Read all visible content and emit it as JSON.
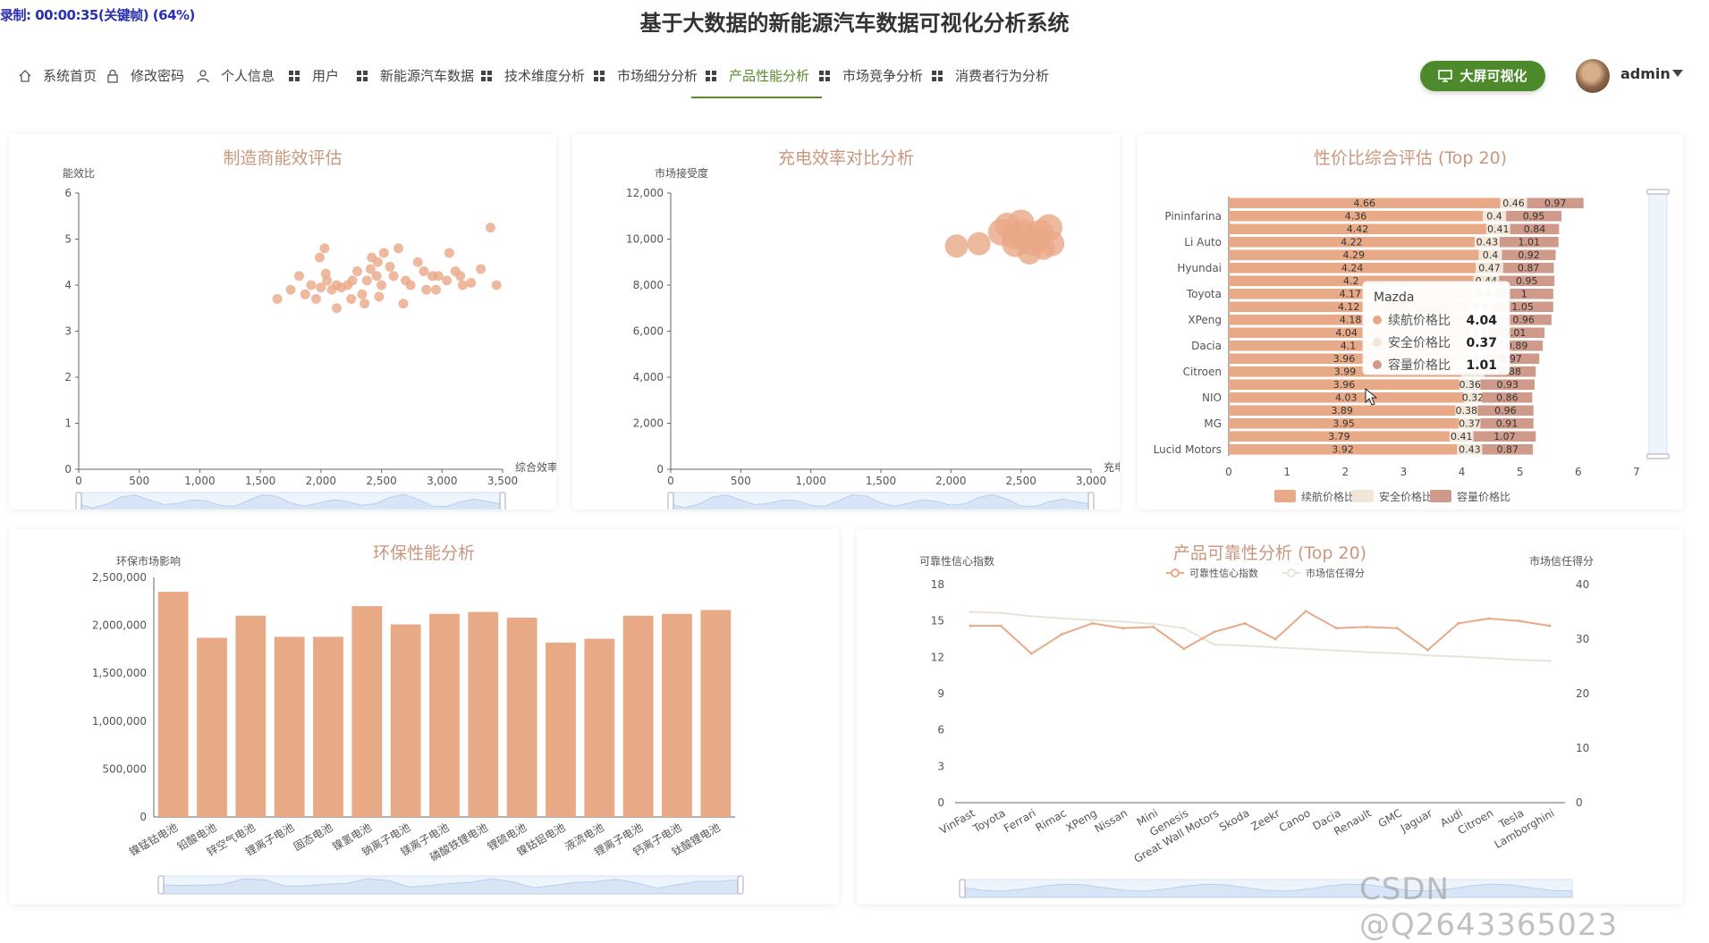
{
  "recording": "录制: 00:00:35(关键帧) (64%)",
  "title": "基于大数据的新能源汽车数据可视化分析系统",
  "nav": [
    {
      "label": "系统首页",
      "icon": "home-icon"
    },
    {
      "label": "修改密码",
      "icon": "lock-icon"
    },
    {
      "label": "个人信息",
      "icon": "user-icon"
    },
    {
      "label": "用户",
      "icon": "grid-icon"
    },
    {
      "label": "新能源汽车数据",
      "icon": "grid-icon"
    },
    {
      "label": "技术维度分析",
      "icon": "grid-icon"
    },
    {
      "label": "市场细分分析",
      "icon": "grid-icon"
    },
    {
      "label": "产品性能分析",
      "icon": "grid-icon",
      "active": true
    },
    {
      "label": "市场竞争分析",
      "icon": "grid-icon"
    },
    {
      "label": "消费者行为分析",
      "icon": "grid-icon"
    }
  ],
  "bigscreen_label": "大屏可视化",
  "user": "admin",
  "watermark": "CSDN @Q2643365023",
  "colors": {
    "accent": "#4c8a2c",
    "bar": "#e8a987",
    "bar2": "#f2e6d8",
    "bar3": "#cf9a8a",
    "line2": "#e9e4d7"
  },
  "charts": {
    "c1": {
      "title": "制造商能效评估",
      "type": "scatter",
      "ylabel": "能效比",
      "xlabel": "综合效率%",
      "xlim": [
        0,
        3500
      ],
      "ylim": [
        0,
        6
      ],
      "xticks": [
        "0",
        "500",
        "1,000",
        "1,500",
        "2,000",
        "2,500",
        "3,000",
        "3,500"
      ],
      "yticks": [
        "0",
        "1",
        "2",
        "3",
        "4",
        "5",
        "6"
      ],
      "points": [
        [
          1640,
          3.7
        ],
        [
          1750,
          3.9
        ],
        [
          1820,
          4.2
        ],
        [
          1870,
          3.8
        ],
        [
          1920,
          4.0
        ],
        [
          1960,
          3.7
        ],
        [
          2000,
          3.95
        ],
        [
          1990,
          4.6
        ],
        [
          2030,
          4.8
        ],
        [
          2050,
          4.1
        ],
        [
          2090,
          3.9
        ],
        [
          2130,
          4.0
        ],
        [
          2170,
          3.95
        ],
        [
          2220,
          4.0
        ],
        [
          2250,
          3.7
        ],
        [
          2260,
          4.1
        ],
        [
          2300,
          4.3
        ],
        [
          2340,
          3.8
        ],
        [
          2380,
          4.1
        ],
        [
          2410,
          4.35
        ],
        [
          2420,
          4.6
        ],
        [
          2460,
          4.2
        ],
        [
          2470,
          4.5
        ],
        [
          2480,
          3.75
        ],
        [
          2500,
          4.0
        ],
        [
          2520,
          4.7
        ],
        [
          2570,
          4.4
        ],
        [
          2600,
          4.2
        ],
        [
          2640,
          4.8
        ],
        [
          2680,
          3.6
        ],
        [
          2700,
          4.1
        ],
        [
          2740,
          4.0
        ],
        [
          2800,
          4.5
        ],
        [
          2850,
          4.3
        ],
        [
          2870,
          3.9
        ],
        [
          2920,
          4.2
        ],
        [
          2950,
          3.9
        ],
        [
          2970,
          4.2
        ],
        [
          3040,
          4.1
        ],
        [
          3060,
          4.7
        ],
        [
          3110,
          4.3
        ],
        [
          3150,
          4.2
        ],
        [
          3170,
          4.0
        ],
        [
          3240,
          4.05
        ],
        [
          3320,
          4.35
        ],
        [
          3400,
          5.25
        ],
        [
          3450,
          4.0
        ],
        [
          2130,
          3.5
        ],
        [
          2360,
          3.6
        ],
        [
          2040,
          4.25
        ]
      ]
    },
    "c2": {
      "title": "充电效率对比分析",
      "type": "scatter",
      "ylabel": "市场接受度",
      "xlabel": "充电效率",
      "xlim": [
        0,
        3000
      ],
      "ylim": [
        0,
        12000
      ],
      "xticks": [
        "0",
        "500",
        "1,000",
        "1,500",
        "2,000",
        "2,500",
        "3,000"
      ],
      "yticks": [
        "0",
        "2,000",
        "4,000",
        "6,000",
        "8,000",
        "10,000",
        "12,000"
      ],
      "points": [
        [
          2040,
          9700
        ],
        [
          2200,
          9800
        ],
        [
          2360,
          10300
        ],
        [
          2400,
          10600
        ],
        [
          2500,
          10700
        ],
        [
          2520,
          10200
        ],
        [
          2580,
          9900
        ],
        [
          2620,
          10000
        ],
        [
          2660,
          9600
        ],
        [
          2700,
          10500
        ],
        [
          2720,
          9800
        ],
        [
          2560,
          9400
        ],
        [
          2460,
          9800
        ],
        [
          2640,
          10300
        ],
        [
          2450,
          10100
        ]
      ]
    },
    "c3": {
      "title": "性价比综合评估 (Top 20)",
      "type": "bar",
      "legend": [
        "续航价格比",
        "安全价格比",
        "容量价格比"
      ],
      "xticks": [
        "0",
        "1",
        "2",
        "3",
        "4",
        "5",
        "6",
        "7"
      ],
      "ylabels": [
        "Pininfarina",
        "Li Auto",
        "Hyundai",
        "Toyota",
        "XPeng",
        "Dacia",
        "Citroen",
        "NIO",
        "MG",
        "Lucid Motors"
      ],
      "rows": [
        [
          4.66,
          0.46,
          0.97
        ],
        [
          4.36,
          0.4,
          0.95
        ],
        [
          4.42,
          0.41,
          0.84
        ],
        [
          4.22,
          0.43,
          1.01
        ],
        [
          4.29,
          0.4,
          0.92
        ],
        [
          4.24,
          0.47,
          0.87
        ],
        [
          4.2,
          0.44,
          0.95
        ],
        [
          4.17,
          0.4,
          1
        ],
        [
          4.12,
          0.4,
          1.05
        ],
        [
          4.18,
          0.4,
          0.96
        ],
        [
          4.04,
          0.37,
          1.01
        ],
        [
          4.1,
          0.4,
          0.89
        ],
        [
          3.96,
          0.4,
          0.97
        ],
        [
          3.99,
          0.4,
          0.88
        ],
        [
          3.96,
          0.36,
          0.93
        ],
        [
          4.03,
          0.32,
          0.86
        ],
        [
          3.89,
          0.38,
          0.96
        ],
        [
          3.95,
          0.37,
          0.91
        ],
        [
          3.79,
          0.41,
          1.07
        ],
        [
          3.92,
          0.43,
          0.87
        ]
      ],
      "tooltip": {
        "name": "Mazda",
        "rows": [
          {
            "label": "续航价格比",
            "value": "4.04"
          },
          {
            "label": "安全价格比",
            "value": "0.37"
          },
          {
            "label": "容量价格比",
            "value": "1.01"
          }
        ]
      }
    },
    "c4": {
      "title": "环保性能分析",
      "type": "bar",
      "ylabel": "环保市场影响",
      "ylim": [
        0,
        2500000
      ],
      "yticks": [
        "0",
        "500,000",
        "1,000,000",
        "1,500,000",
        "2,000,000",
        "2,500,000"
      ],
      "categories": [
        "镍锰钴电池",
        "铅酸电池",
        "锌空气电池",
        "锂离子电池",
        "固态电池",
        "镍氢电池",
        "钠离子电池",
        "镁离子电池",
        "磷酸铁锂电池",
        "锂硫电池",
        "镍钴铝电池",
        "液流电池",
        "锂离子电池",
        "钙离子电池",
        "钛酸锂电池"
      ],
      "values": [
        2350000,
        1870000,
        2100000,
        1880000,
        1880000,
        2200000,
        2010000,
        2120000,
        2140000,
        2080000,
        1820000,
        1860000,
        2100000,
        2120000,
        2160000
      ]
    },
    "c5": {
      "title": "产品可靠性分析 (Top 20)",
      "type": "line",
      "ylabel": "可靠性信心指数",
      "y2label": "市场信任得分",
      "legend": [
        "可靠性信心指数",
        "市场信任得分"
      ],
      "ylim": [
        0,
        18
      ],
      "y2lim": [
        0,
        40
      ],
      "yticks": [
        "0",
        "3",
        "6",
        "9",
        "12",
        "15",
        "18"
      ],
      "y2ticks": [
        "0",
        "10",
        "20",
        "30",
        "40"
      ],
      "categories": [
        "VinFast",
        "Toyota",
        "Ferrari",
        "Rimac",
        "XPeng",
        "Nissan",
        "Mini",
        "Genesis",
        "Great Wall Motors",
        "Skoda",
        "Zeekr",
        "Canoo",
        "Dacia",
        "Renault",
        "GMC",
        "Jaguar",
        "Audi",
        "Citroen",
        "Tesla",
        "Lamborghini"
      ],
      "series1": [
        14.6,
        14.6,
        12.3,
        13.9,
        14.8,
        14.4,
        14.5,
        12.7,
        14.1,
        14.8,
        13.5,
        15.8,
        14.4,
        14.5,
        14.4,
        12.6,
        14.8,
        15.2,
        15.0,
        14.6
      ],
      "series2": [
        35.0,
        34.8,
        34.2,
        33.8,
        33.5,
        33.2,
        32.8,
        32.0,
        29.0,
        28.8,
        28.5,
        28.2,
        27.9,
        27.6,
        27.4,
        27.0,
        26.8,
        26.5,
        26.2,
        26.0
      ]
    }
  }
}
